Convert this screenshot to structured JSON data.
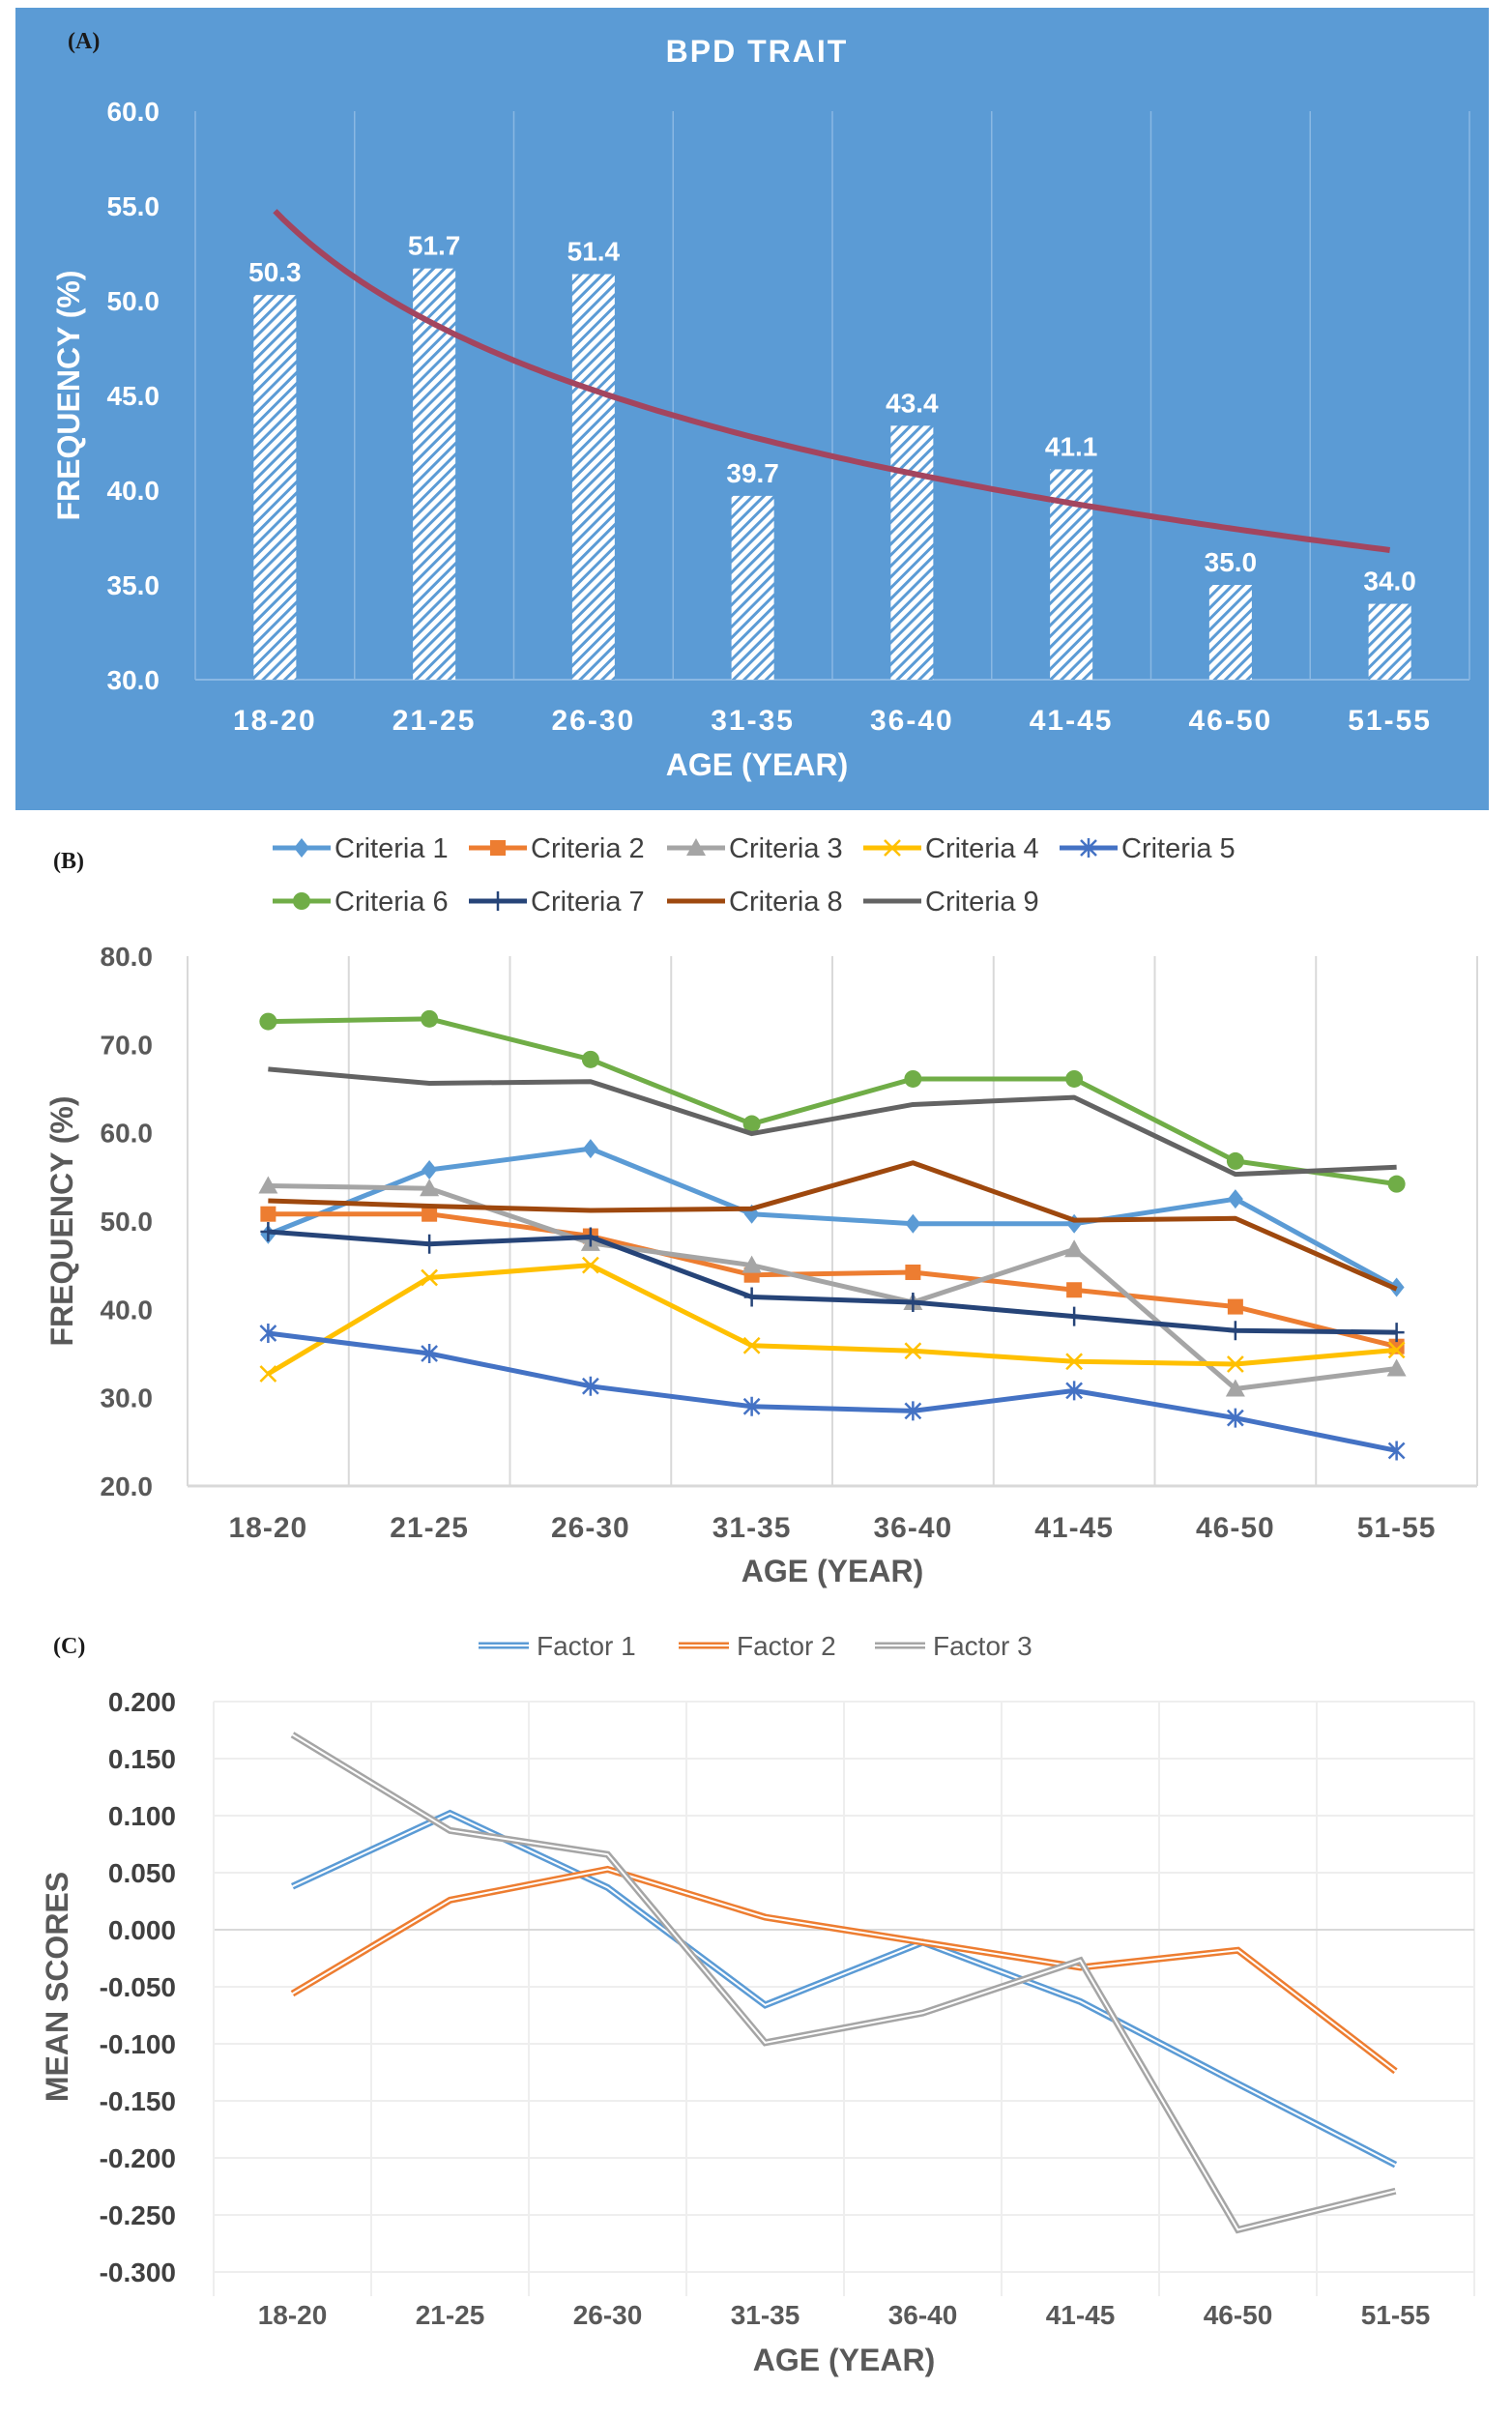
{
  "chart_data": [
    {
      "panel_label": "(A)",
      "type": "bar",
      "title": "BPD TRAIT",
      "xlabel": "AGE (YEAR)",
      "ylabel": "FREQUENCY (%)",
      "ylim": [
        30,
        60
      ],
      "yticks": [
        "30.0",
        "35.0",
        "40.0",
        "45.0",
        "50.0",
        "55.0",
        "60.0"
      ],
      "categories": [
        "18-20",
        "21-25",
        "26-30",
        "31-35",
        "36-40",
        "41-45",
        "46-50",
        "51-55"
      ],
      "values": [
        50.3,
        51.7,
        51.4,
        39.7,
        43.4,
        41.1,
        35.0,
        34.0
      ],
      "data_labels": [
        "50.3",
        "51.7",
        "51.4",
        "39.7",
        "43.4",
        "41.1",
        "35.0",
        "34.0"
      ],
      "trendline": "logarithmic",
      "grid": "vertical",
      "colors": {
        "background": "#5B9BD5",
        "trendline": "#A3455F",
        "bar_hatch": "#5B9BD5",
        "bar_fill": "#FFFFFF"
      }
    },
    {
      "panel_label": "(B)",
      "type": "line",
      "xlabel": "AGE (YEAR)",
      "ylabel": "FREQUENCY (%)",
      "ylim": [
        20,
        80
      ],
      "yticks": [
        "20.0",
        "30.0",
        "40.0",
        "50.0",
        "60.0",
        "70.0",
        "80.0"
      ],
      "categories": [
        "18-20",
        "21-25",
        "26-30",
        "31-35",
        "36-40",
        "41-45",
        "46-50",
        "51-55"
      ],
      "legend": "top",
      "grid": "vertical",
      "series": [
        {
          "name": "Criteria 1",
          "color": "#5B9BD5",
          "marker": "diamond",
          "values": [
            48.5,
            55.8,
            58.2,
            50.8,
            49.7,
            49.7,
            52.5,
            42.5
          ]
        },
        {
          "name": "Criteria 2",
          "color": "#ED7D31",
          "marker": "square",
          "values": [
            50.8,
            50.8,
            48.3,
            43.9,
            44.2,
            42.2,
            40.3,
            35.8
          ]
        },
        {
          "name": "Criteria 3",
          "color": "#A5A5A5",
          "marker": "triangle",
          "values": [
            54.0,
            53.7,
            47.5,
            45.0,
            40.8,
            46.8,
            31.0,
            33.3
          ]
        },
        {
          "name": "Criteria 4",
          "color": "#FFC000",
          "marker": "x",
          "values": [
            32.7,
            43.6,
            45.0,
            35.9,
            35.3,
            34.1,
            33.8,
            35.4
          ]
        },
        {
          "name": "Criteria 5",
          "color": "#4472C4",
          "marker": "asterisk",
          "values": [
            37.3,
            35.0,
            31.3,
            29.0,
            28.5,
            30.8,
            27.7,
            24.0
          ]
        },
        {
          "name": "Criteria 6",
          "color": "#70AD47",
          "marker": "circle",
          "values": [
            72.6,
            72.9,
            68.3,
            61.0,
            66.1,
            66.1,
            56.8,
            54.2
          ]
        },
        {
          "name": "Criteria 7",
          "color": "#264478",
          "marker": "plus",
          "values": [
            48.8,
            47.4,
            48.2,
            41.4,
            40.8,
            39.2,
            37.6,
            37.4
          ]
        },
        {
          "name": "Criteria 8",
          "color": "#9E480E",
          "marker": "none",
          "values": [
            52.3,
            51.7,
            51.2,
            51.4,
            56.6,
            50.1,
            50.3,
            42.3
          ]
        },
        {
          "name": "Criteria 9",
          "color": "#636363",
          "marker": "none",
          "values": [
            67.2,
            65.6,
            65.8,
            59.9,
            63.2,
            64.0,
            55.3,
            56.1
          ]
        }
      ]
    },
    {
      "panel_label": "(C)",
      "type": "line",
      "xlabel": "AGE (YEAR)",
      "ylabel": "MEAN SCORES",
      "ylim": [
        -0.3,
        0.2
      ],
      "yticks": [
        "-0.300",
        "-0.250",
        "-0.200",
        "-0.150",
        "-0.100",
        "-0.050",
        "0.000",
        "0.050",
        "0.100",
        "0.150",
        "0.200"
      ],
      "categories": [
        "18-20",
        "21-25",
        "26-30",
        "31-35",
        "36-40",
        "41-45",
        "46-50",
        "51-55"
      ],
      "legend": "top",
      "grid": "both",
      "line_style": "double",
      "series": [
        {
          "name": "Factor 1",
          "color": "#5B9BD5",
          "values": [
            0.038,
            0.102,
            0.037,
            -0.066,
            -0.011,
            -0.063,
            -0.135,
            -0.206
          ]
        },
        {
          "name": "Factor 2",
          "color": "#ED7D31",
          "values": [
            -0.056,
            0.026,
            0.053,
            0.011,
            -0.011,
            -0.033,
            -0.018,
            -0.124
          ]
        },
        {
          "name": "Factor 3",
          "color": "#A5A5A5",
          "values": [
            0.171,
            0.087,
            0.066,
            -0.099,
            -0.073,
            -0.027,
            -0.263,
            -0.229
          ]
        }
      ]
    }
  ]
}
